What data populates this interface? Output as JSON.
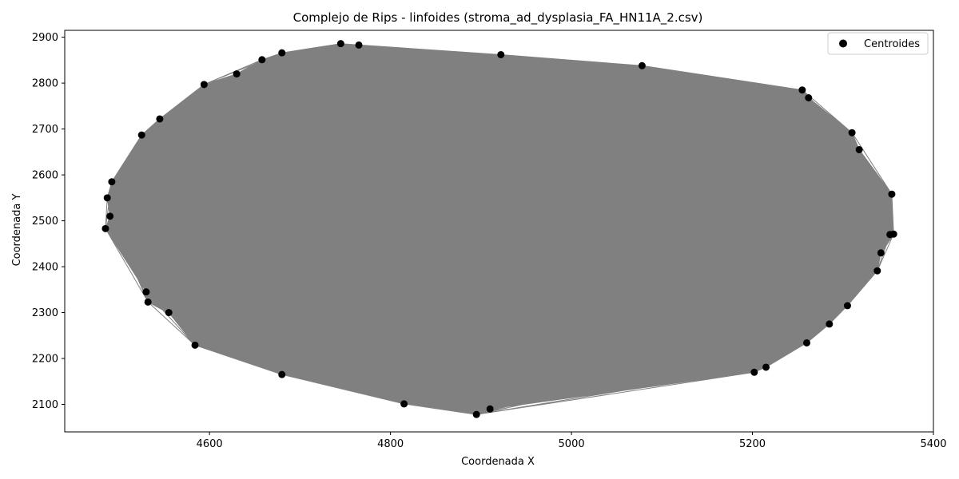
{
  "chart_data": {
    "type": "scatter",
    "title": "Complejo de Rips - linfoides (stroma_ad_dysplasia_FA_HN11A_2.csv)",
    "xlabel": "Coordenada X",
    "ylabel": "Coordenada Y",
    "xlim": [
      4440,
      5400
    ],
    "ylim": [
      2040,
      2915
    ],
    "xticks": [
      4600,
      4800,
      5000,
      5200,
      5400
    ],
    "yticks": [
      2100,
      2200,
      2300,
      2400,
      2500,
      2600,
      2700,
      2800,
      2900
    ],
    "grid": false,
    "legend": {
      "position": "top-right",
      "entries": [
        {
          "label": "Centroides",
          "marker": "circle",
          "color": "#000000"
        }
      ]
    },
    "edge_color": "#808080",
    "point_color": "#000000",
    "series": [
      {
        "name": "Centroides",
        "points": [
          [
            4485,
            2483
          ],
          [
            4487,
            2550
          ],
          [
            4490,
            2510
          ],
          [
            4492,
            2585
          ],
          [
            4525,
            2687
          ],
          [
            4530,
            2345
          ],
          [
            4532,
            2323
          ],
          [
            4545,
            2722
          ],
          [
            4555,
            2300
          ],
          [
            4584,
            2229
          ],
          [
            4594,
            2797
          ],
          [
            4630,
            2820
          ],
          [
            4658,
            2851
          ],
          [
            4680,
            2866
          ],
          [
            4680,
            2165
          ],
          [
            4745,
            2886
          ],
          [
            4765,
            2883
          ],
          [
            4815,
            2101
          ],
          [
            4895,
            2078
          ],
          [
            4910,
            2090
          ],
          [
            4922,
            2862
          ],
          [
            5078,
            2838
          ],
          [
            5202,
            2170
          ],
          [
            5215,
            2181
          ],
          [
            5255,
            2785
          ],
          [
            5260,
            2234
          ],
          [
            5262,
            2768
          ],
          [
            5285,
            2275
          ],
          [
            5305,
            2315
          ],
          [
            5310,
            2692
          ],
          [
            5318,
            2655
          ],
          [
            5338,
            2391
          ],
          [
            5342,
            2430
          ],
          [
            5352,
            2470
          ],
          [
            5354,
            2558
          ],
          [
            5356,
            2471
          ]
        ]
      }
    ]
  }
}
